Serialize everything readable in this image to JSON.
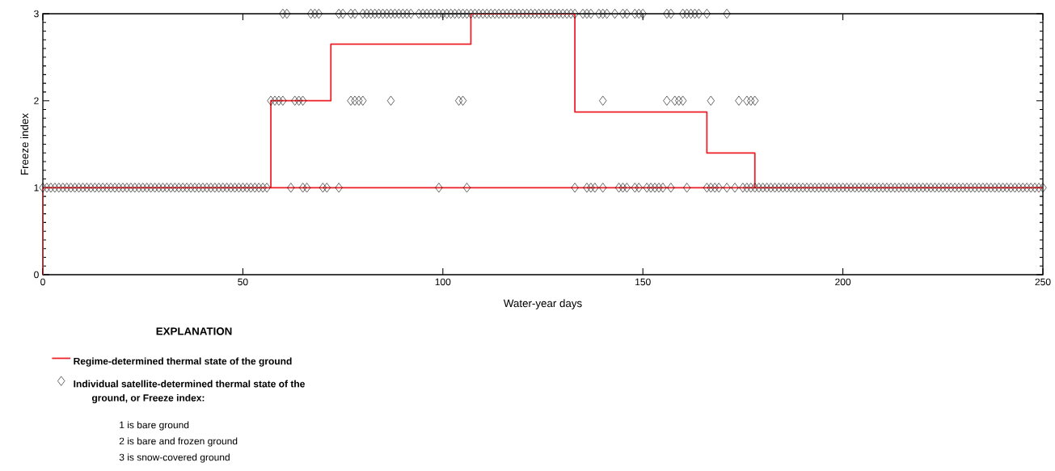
{
  "chart_data": {
    "type": "line",
    "xlabel": "Water-year days",
    "ylabel": "Freeze index",
    "legend_title": "EXPLANATION",
    "legend": "bottom left",
    "grid": false,
    "xlim": [
      0,
      250
    ],
    "ylim": [
      0,
      3
    ],
    "xticks": [
      0,
      50,
      100,
      150,
      200,
      250
    ],
    "yticks": [
      0,
      1,
      2,
      3
    ],
    "series": [
      {
        "name": "Regime-determined thermal state of the ground",
        "marker": "none",
        "color": "#ee1c25",
        "x": [
          0,
          0,
          57,
          57,
          72,
          72,
          107,
          107,
          133,
          133,
          166,
          166,
          178,
          178,
          250
        ],
        "values": [
          0,
          1,
          1,
          2,
          2,
          2.65,
          2.65,
          3,
          3,
          1.87,
          1.87,
          1.4,
          1.4,
          1,
          1
        ]
      },
      {
        "marker": "none",
        "color": "#ee1c25",
        "x": [
          57,
          178
        ],
        "values": [
          1,
          1
        ]
      },
      {
        "name": "Individual satellite-determined thermal state of the ground, or Freeze index:",
        "type": "scatter",
        "marker": "diamond",
        "color": "#000000",
        "x": [
          0,
          1,
          2,
          3,
          4,
          5,
          6,
          7,
          8,
          9,
          10,
          11,
          12,
          13,
          14,
          15,
          16,
          17,
          18,
          19,
          20,
          21,
          22,
          23,
          24,
          25,
          26,
          27,
          28,
          29,
          30,
          31,
          32,
          33,
          34,
          35,
          36,
          37,
          38,
          39,
          40,
          41,
          42,
          43,
          44,
          45,
          46,
          47,
          48,
          49,
          50,
          51,
          52,
          53,
          54,
          55,
          56,
          62,
          65,
          66,
          70,
          71,
          74,
          99,
          106,
          133,
          136,
          137,
          138,
          140,
          144,
          145,
          146,
          148,
          149,
          151,
          152,
          153,
          154,
          155,
          157,
          161,
          166,
          167,
          168,
          169,
          171,
          173,
          175,
          176,
          177,
          178,
          179,
          180,
          181,
          182,
          183,
          184,
          185,
          186,
          187,
          188,
          189,
          190,
          191,
          192,
          193,
          194,
          195,
          196,
          197,
          198,
          199,
          200,
          201,
          202,
          203,
          204,
          205,
          206,
          207,
          208,
          209,
          210,
          211,
          212,
          213,
          214,
          215,
          216,
          217,
          218,
          219,
          220,
          221,
          222,
          223,
          224,
          225,
          226,
          227,
          228,
          229,
          230,
          231,
          232,
          233,
          234,
          235,
          236,
          237,
          238,
          239,
          240,
          241,
          242,
          243,
          244,
          245,
          246,
          247,
          248,
          249,
          250,
          57,
          58,
          59,
          60,
          63,
          64,
          65,
          77,
          78,
          79,
          80,
          87,
          104,
          105,
          140,
          156,
          158,
          159,
          160,
          167,
          174,
          176,
          177,
          178,
          60,
          61,
          67,
          68,
          69,
          74,
          75,
          77,
          78,
          80,
          81,
          82,
          83,
          84,
          85,
          86,
          87,
          88,
          89,
          90,
          91,
          92,
          94,
          95,
          96,
          97,
          98,
          99,
          100,
          101,
          102,
          103,
          104,
          105,
          106,
          107,
          108,
          109,
          110,
          111,
          112,
          113,
          114,
          115,
          116,
          117,
          118,
          119,
          120,
          121,
          122,
          123,
          124,
          125,
          126,
          127,
          128,
          129,
          130,
          131,
          132,
          133,
          135,
          136,
          137,
          139,
          140,
          141,
          143,
          145,
          146,
          148,
          149,
          150,
          156,
          157,
          160,
          161,
          162,
          163,
          164,
          166,
          171
        ],
        "values": [
          1,
          1,
          1,
          1,
          1,
          1,
          1,
          1,
          1,
          1,
          1,
          1,
          1,
          1,
          1,
          1,
          1,
          1,
          1,
          1,
          1,
          1,
          1,
          1,
          1,
          1,
          1,
          1,
          1,
          1,
          1,
          1,
          1,
          1,
          1,
          1,
          1,
          1,
          1,
          1,
          1,
          1,
          1,
          1,
          1,
          1,
          1,
          1,
          1,
          1,
          1,
          1,
          1,
          1,
          1,
          1,
          1,
          1,
          1,
          1,
          1,
          1,
          1,
          1,
          1,
          1,
          1,
          1,
          1,
          1,
          1,
          1,
          1,
          1,
          1,
          1,
          1,
          1,
          1,
          1,
          1,
          1,
          1,
          1,
          1,
          1,
          1,
          1,
          1,
          1,
          1,
          1,
          1,
          1,
          1,
          1,
          1,
          1,
          1,
          1,
          1,
          1,
          1,
          1,
          1,
          1,
          1,
          1,
          1,
          1,
          1,
          1,
          1,
          1,
          1,
          1,
          1,
          1,
          1,
          1,
          1,
          1,
          1,
          1,
          1,
          1,
          1,
          1,
          1,
          1,
          1,
          1,
          1,
          1,
          1,
          1,
          1,
          1,
          1,
          1,
          1,
          1,
          1,
          1,
          1,
          1,
          1,
          1,
          1,
          1,
          1,
          1,
          1,
          1,
          1,
          1,
          1,
          1,
          1,
          1,
          1,
          1,
          1,
          1,
          2,
          2,
          2,
          2,
          2,
          2,
          2,
          2,
          2,
          2,
          2,
          2,
          2,
          2,
          2,
          2,
          2,
          2,
          2,
          2,
          2,
          2,
          2,
          2,
          3,
          3,
          3,
          3,
          3,
          3,
          3,
          3,
          3,
          3,
          3,
          3,
          3,
          3,
          3,
          3,
          3,
          3,
          3,
          3,
          3,
          3,
          3,
          3,
          3,
          3,
          3,
          3,
          3,
          3,
          3,
          3,
          3,
          3,
          3,
          3,
          3,
          3,
          3,
          3,
          3,
          3,
          3,
          3,
          3,
          3,
          3,
          3,
          3,
          3,
          3,
          3,
          3,
          3,
          3,
          3,
          3,
          3,
          3,
          3,
          3,
          3,
          3,
          3,
          3,
          3,
          3,
          3,
          3,
          3,
          3,
          3,
          3,
          3,
          3,
          3,
          3,
          3,
          3,
          3,
          3,
          3,
          3
        ]
      }
    ],
    "annotations": [
      "1 is bare ground",
      "2 is bare and frozen ground",
      "3 is snow-covered ground"
    ]
  }
}
